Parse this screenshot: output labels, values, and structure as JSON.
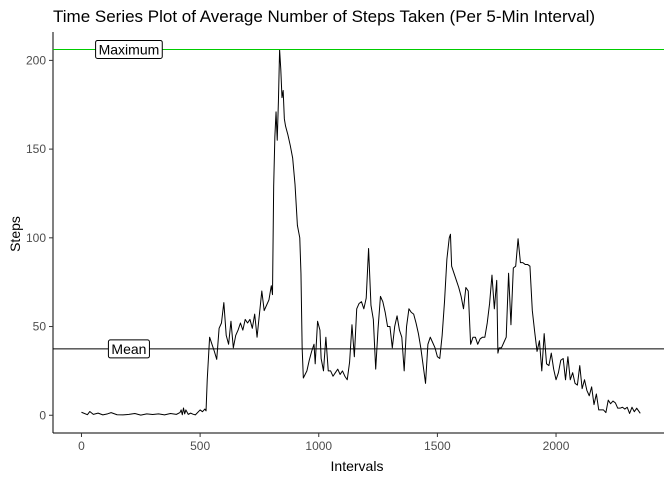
{
  "chart_data": {
    "type": "line",
    "title": "Time Series Plot of Average Number of Steps Taken (Per 5-Min Interval)",
    "xlabel": "Intervals",
    "ylabel": "Steps",
    "xlim": [
      -120,
      2455
    ],
    "ylim": [
      -10,
      216
    ],
    "x_ticks": [
      0,
      500,
      1000,
      1500,
      2000
    ],
    "y_ticks": [
      0,
      50,
      100,
      150,
      200
    ],
    "grid": false,
    "series": [
      {
        "color": "#000000",
        "points": [
          [
            0,
            1.7
          ],
          [
            25,
            0.3
          ],
          [
            35,
            2.1
          ],
          [
            50,
            0.5
          ],
          [
            70,
            1.2
          ],
          [
            90,
            0.2
          ],
          [
            110,
            0.8
          ],
          [
            125,
            1.5
          ],
          [
            150,
            0.3
          ],
          [
            175,
            0.2
          ],
          [
            200,
            0.5
          ],
          [
            225,
            1.0
          ],
          [
            250,
            0.1
          ],
          [
            275,
            0.8
          ],
          [
            300,
            0.4
          ],
          [
            325,
            0.8
          ],
          [
            350,
            0.2
          ],
          [
            375,
            1.0
          ],
          [
            400,
            0.5
          ],
          [
            415,
            1.5
          ],
          [
            420,
            3.0
          ],
          [
            425,
            0.3
          ],
          [
            430,
            4.1
          ],
          [
            435,
            0.8
          ],
          [
            440,
            3.0
          ],
          [
            450,
            0.5
          ],
          [
            460,
            1.2
          ],
          [
            470,
            0.6
          ],
          [
            480,
            0.2
          ],
          [
            500,
            3.0
          ],
          [
            510,
            2.0
          ],
          [
            520,
            3.5
          ],
          [
            525,
            2.5
          ],
          [
            530,
            20.0
          ],
          [
            540,
            44.0
          ],
          [
            550,
            40.0
          ],
          [
            560,
            36.0
          ],
          [
            570,
            31.5
          ],
          [
            580,
            49.0
          ],
          [
            590,
            52.0
          ],
          [
            600,
            63.5
          ],
          [
            610,
            45.0
          ],
          [
            620,
            40.0
          ],
          [
            630,
            53.0
          ],
          [
            640,
            38.0
          ],
          [
            650,
            45.0
          ],
          [
            660,
            48.0
          ],
          [
            670,
            52.0
          ],
          [
            680,
            48.0
          ],
          [
            690,
            54.0
          ],
          [
            700,
            52.0
          ],
          [
            710,
            54.0
          ],
          [
            720,
            49.0
          ],
          [
            730,
            57.0
          ],
          [
            740,
            44.0
          ],
          [
            750,
            57.0
          ],
          [
            760,
            70.0
          ],
          [
            770,
            59.0
          ],
          [
            780,
            62.0
          ],
          [
            790,
            65.0
          ],
          [
            800,
            73.0
          ],
          [
            805,
            68.0
          ],
          [
            810,
            129.0
          ],
          [
            815,
            157.0
          ],
          [
            820,
            171.0
          ],
          [
            825,
            155.0
          ],
          [
            830,
            177.0
          ],
          [
            835,
            206.0
          ],
          [
            840,
            195.0
          ],
          [
            845,
            179.0
          ],
          [
            850,
            183.0
          ],
          [
            855,
            167.0
          ],
          [
            860,
            163.0
          ],
          [
            870,
            158.0
          ],
          [
            880,
            152.0
          ],
          [
            890,
            145.0
          ],
          [
            900,
            130.0
          ],
          [
            910,
            107.0
          ],
          [
            920,
            100.0
          ],
          [
            925,
            80.0
          ],
          [
            930,
            38.0
          ],
          [
            935,
            21.0
          ],
          [
            950,
            25.0
          ],
          [
            960,
            31.0
          ],
          [
            970,
            36.0
          ],
          [
            980,
            40.0
          ],
          [
            985,
            29.0
          ],
          [
            995,
            53.0
          ],
          [
            1005,
            48.0
          ],
          [
            1010,
            32.0
          ],
          [
            1020,
            25.0
          ],
          [
            1030,
            44.0
          ],
          [
            1040,
            25.0
          ],
          [
            1050,
            25.0
          ],
          [
            1060,
            22.0
          ],
          [
            1070,
            24.0
          ],
          [
            1080,
            26.0
          ],
          [
            1090,
            23.0
          ],
          [
            1100,
            25.0
          ],
          [
            1110,
            22.0
          ],
          [
            1120,
            20.0
          ],
          [
            1130,
            30.0
          ],
          [
            1140,
            51.0
          ],
          [
            1150,
            33.0
          ],
          [
            1160,
            60.0
          ],
          [
            1170,
            63.0
          ],
          [
            1180,
            64.0
          ],
          [
            1190,
            60.0
          ],
          [
            1200,
            66.0
          ],
          [
            1210,
            94.0
          ],
          [
            1220,
            62.0
          ],
          [
            1230,
            54.0
          ],
          [
            1240,
            26.0
          ],
          [
            1250,
            49.0
          ],
          [
            1260,
            67.0
          ],
          [
            1270,
            64.0
          ],
          [
            1280,
            58.0
          ],
          [
            1290,
            50.0
          ],
          [
            1300,
            50.0
          ],
          [
            1310,
            38.0
          ],
          [
            1320,
            50.0
          ],
          [
            1330,
            56.0
          ],
          [
            1340,
            48.0
          ],
          [
            1350,
            44.0
          ],
          [
            1360,
            25.0
          ],
          [
            1370,
            50.0
          ],
          [
            1380,
            60.0
          ],
          [
            1390,
            58.0
          ],
          [
            1400,
            57.0
          ],
          [
            1410,
            52.0
          ],
          [
            1420,
            46.0
          ],
          [
            1430,
            38.0
          ],
          [
            1440,
            28.0
          ],
          [
            1450,
            18.0
          ],
          [
            1460,
            40.0
          ],
          [
            1470,
            44.0
          ],
          [
            1480,
            41.0
          ],
          [
            1490,
            38.0
          ],
          [
            1500,
            33.0
          ],
          [
            1510,
            32.0
          ],
          [
            1520,
            45.0
          ],
          [
            1530,
            64.0
          ],
          [
            1540,
            88.0
          ],
          [
            1550,
            100.0
          ],
          [
            1555,
            102.0
          ],
          [
            1560,
            84.0
          ],
          [
            1570,
            80.0
          ],
          [
            1580,
            76.0
          ],
          [
            1590,
            72.0
          ],
          [
            1600,
            67.0
          ],
          [
            1610,
            60.0
          ],
          [
            1620,
            72.0
          ],
          [
            1630,
            70.0
          ],
          [
            1640,
            40.0
          ],
          [
            1650,
            44.0
          ],
          [
            1660,
            44.0
          ],
          [
            1670,
            40.0
          ],
          [
            1680,
            43.0
          ],
          [
            1690,
            44.0
          ],
          [
            1700,
            44.0
          ],
          [
            1710,
            52.0
          ],
          [
            1720,
            63.0
          ],
          [
            1730,
            79.0
          ],
          [
            1740,
            60.0
          ],
          [
            1750,
            76.0
          ],
          [
            1755,
            35.0
          ],
          [
            1760,
            38.0
          ],
          [
            1770,
            38.0
          ],
          [
            1780,
            41.0
          ],
          [
            1790,
            44.0
          ],
          [
            1800,
            80.0
          ],
          [
            1810,
            51.0
          ],
          [
            1820,
            83.0
          ],
          [
            1830,
            84.0
          ],
          [
            1840,
            99.5
          ],
          [
            1850,
            86.0
          ],
          [
            1860,
            86.0
          ],
          [
            1870,
            85.0
          ],
          [
            1880,
            85.0
          ],
          [
            1890,
            84.0
          ],
          [
            1900,
            59.0
          ],
          [
            1910,
            47.0
          ],
          [
            1920,
            36.0
          ],
          [
            1930,
            42.0
          ],
          [
            1940,
            25.0
          ],
          [
            1950,
            46.0
          ],
          [
            1960,
            29.0
          ],
          [
            1970,
            28.0
          ],
          [
            1980,
            35.0
          ],
          [
            1990,
            26.0
          ],
          [
            2000,
            20.0
          ],
          [
            2010,
            24.0
          ],
          [
            2020,
            31.0
          ],
          [
            2030,
            32.0
          ],
          [
            2040,
            20.0
          ],
          [
            2050,
            33.0
          ],
          [
            2060,
            20.0
          ],
          [
            2070,
            24.0
          ],
          [
            2080,
            18.0
          ],
          [
            2090,
            17.0
          ],
          [
            2100,
            28.0
          ],
          [
            2110,
            15.0
          ],
          [
            2120,
            20.0
          ],
          [
            2130,
            14.0
          ],
          [
            2140,
            11.0
          ],
          [
            2150,
            16.0
          ],
          [
            2160,
            6.0
          ],
          [
            2170,
            12.0
          ],
          [
            2180,
            3.0
          ],
          [
            2200,
            3.0
          ],
          [
            2210,
            1.5
          ],
          [
            2220,
            8.5
          ],
          [
            2230,
            6.5
          ],
          [
            2240,
            8.0
          ],
          [
            2250,
            7.0
          ],
          [
            2260,
            4.0
          ],
          [
            2270,
            4.0
          ],
          [
            2280,
            4.5
          ],
          [
            2290,
            3.5
          ],
          [
            2300,
            4.5
          ],
          [
            2310,
            1.0
          ],
          [
            2320,
            4.5
          ],
          [
            2330,
            2.0
          ],
          [
            2340,
            4.0
          ],
          [
            2355,
            1.1
          ]
        ]
      }
    ],
    "reference_lines": [
      {
        "label": "Maximum",
        "y": 206.17,
        "color": "#00cc00",
        "label_x": 200
      },
      {
        "label": "Mean",
        "y": 37.38,
        "color": "#000000",
        "label_x": 200
      }
    ]
  }
}
